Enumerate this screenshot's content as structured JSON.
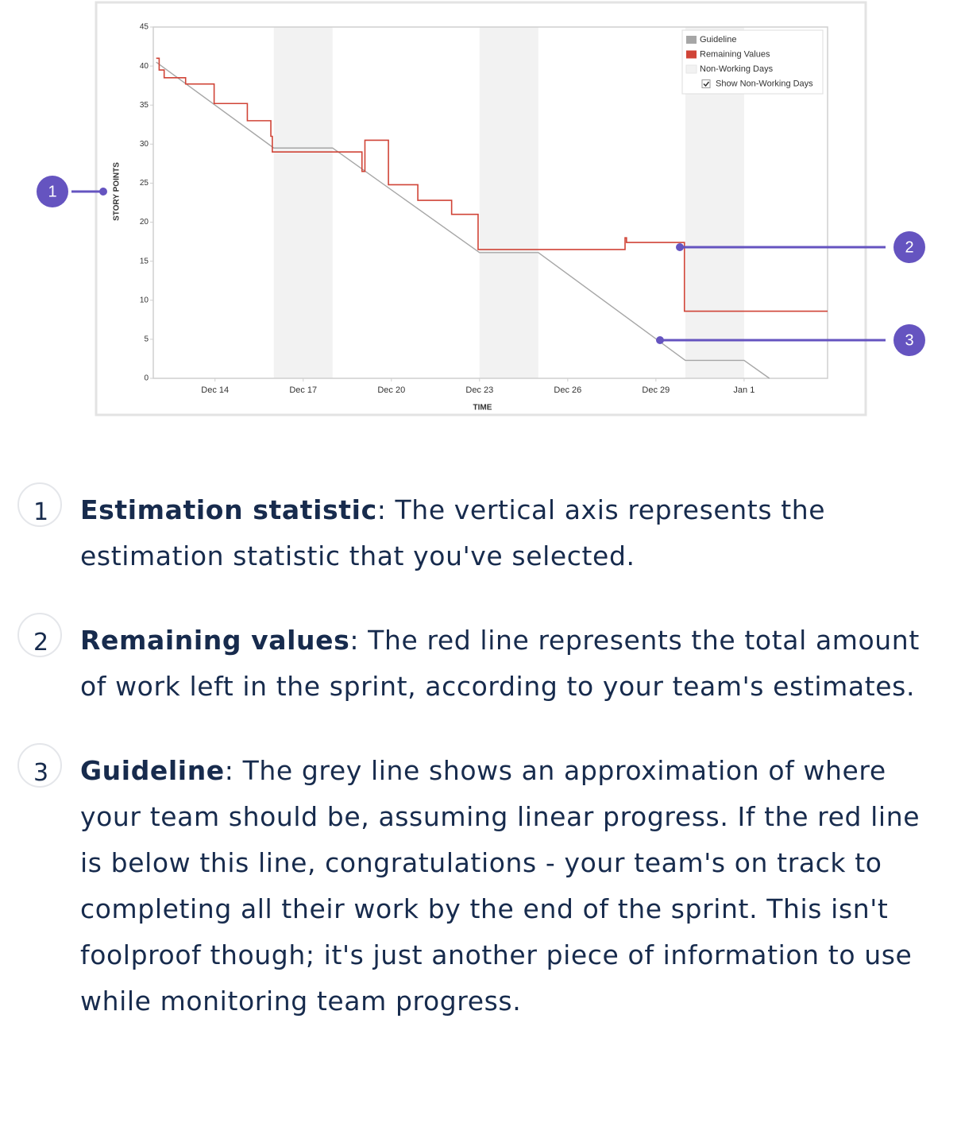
{
  "chart_data": {
    "type": "step-line",
    "x_label": "TIME",
    "y_label": "STORY POINTS",
    "xlim": [
      11.9,
      34.84
    ],
    "ylim": [
      0,
      45
    ],
    "xticks": [
      {
        "value": 14,
        "label": "Dec 14"
      },
      {
        "value": 17,
        "label": "Dec 17"
      },
      {
        "value": 20,
        "label": "Dec 20"
      },
      {
        "value": 23,
        "label": "Dec 23"
      },
      {
        "value": 26,
        "label": "Dec 26"
      },
      {
        "value": 29,
        "label": "Dec 29"
      },
      {
        "value": 32,
        "label": "Jan 1"
      }
    ],
    "yticks": [
      0,
      5,
      10,
      15,
      20,
      25,
      30,
      35,
      40,
      45
    ],
    "legend": "top-right",
    "non_working": {
      "name": "Non-Working Days",
      "color": "#f2f2f2",
      "ranges": [
        [
          16,
          18
        ],
        [
          23,
          25
        ],
        [
          30,
          32
        ]
      ]
    },
    "checkbox_label": "Show Non-Working Days",
    "series": [
      {
        "name": "Guideline",
        "color": "#a6a6a6",
        "x": [
          12,
          16,
          18,
          23,
          25,
          30,
          32,
          32.86
        ],
        "values": [
          40.5,
          29.5,
          29.5,
          16.1,
          16.1,
          2.3,
          2.3,
          0
        ]
      },
      {
        "name": "Remaining Values",
        "color": "#d04437",
        "x": [
          12,
          12.1,
          12.1,
          12.27,
          12.27,
          13,
          13,
          13.97,
          13.97,
          15.1,
          15.1,
          15.9,
          15.9,
          15.95,
          15.95,
          19,
          19,
          19.1,
          19.1,
          19.9,
          19.9,
          20.9,
          20.9,
          22.05,
          22.05,
          22.95,
          22.95,
          27.95,
          27.95,
          28,
          28,
          29.97,
          29.97,
          34.84
        ],
        "values": [
          41,
          41,
          39.5,
          39.5,
          38.5,
          38.5,
          37.7,
          37.7,
          35.2,
          35.2,
          33,
          33,
          31,
          31,
          29,
          29,
          26.5,
          26.5,
          30.5,
          30.5,
          24.8,
          24.8,
          22.8,
          22.8,
          21,
          21,
          16.5,
          16.5,
          18,
          18,
          17.4,
          17.4,
          8.6,
          8.6
        ]
      }
    ]
  },
  "callouts": [
    "1",
    "2",
    "3"
  ],
  "items": [
    {
      "number": "1",
      "term": "Estimation statistic",
      "text": ": The vertical axis represents the estimation statistic that you've selected."
    },
    {
      "number": "2",
      "term": "Remaining values",
      "text": ": The red line represents the total amount of work left in the sprint, according to your team's estimates."
    },
    {
      "number": "3",
      "term": "Guideline",
      "text": ": The grey line shows an approximation of where your team should be, assuming linear progress. If the red line is below this line, congratulations - your team's on track to completing all their work by the end of the sprint. This isn't foolproof though; it's just another piece of information to use while monitoring team progress."
    }
  ]
}
